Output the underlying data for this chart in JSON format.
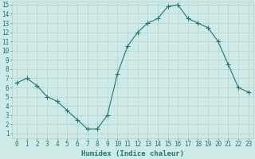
{
  "x": [
    0,
    1,
    2,
    3,
    4,
    5,
    6,
    7,
    8,
    9,
    10,
    11,
    12,
    13,
    14,
    15,
    16,
    17,
    18,
    19,
    20,
    21,
    22,
    23
  ],
  "y": [
    6.5,
    7.0,
    6.2,
    5.0,
    4.5,
    3.5,
    2.5,
    1.5,
    1.5,
    3.0,
    7.5,
    10.5,
    12.0,
    13.0,
    13.5,
    14.8,
    15.0,
    13.5,
    13.0,
    12.5,
    11.0,
    8.5,
    6.0,
    5.5
  ],
  "line_color": "#1a7a6e",
  "marker": "+",
  "marker_size": 4,
  "bg_color": "#ceeae7",
  "grid_color": "#b0cfcc",
  "xlabel": "Humidex (Indice chaleur)",
  "xlim": [
    -0.5,
    23.5
  ],
  "ylim_min": 0.5,
  "ylim_max": 15.3,
  "yticks": [
    1,
    2,
    3,
    4,
    5,
    6,
    7,
    8,
    9,
    10,
    11,
    12,
    13,
    14,
    15
  ],
  "xticks": [
    0,
    1,
    2,
    3,
    4,
    5,
    6,
    7,
    8,
    9,
    10,
    11,
    12,
    13,
    14,
    15,
    16,
    17,
    18,
    19,
    20,
    21,
    22,
    23
  ],
  "tick_fontsize": 5.5,
  "label_fontsize": 6.5
}
